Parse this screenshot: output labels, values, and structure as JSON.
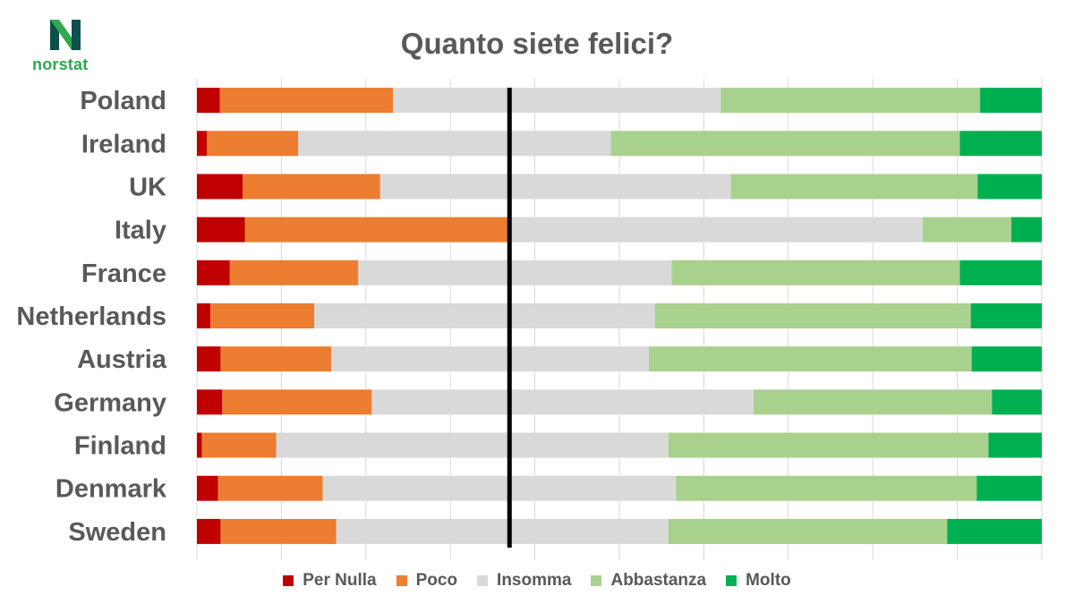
{
  "brand": {
    "name": "norstat",
    "color_dark": "#0d4f4a",
    "color_green": "#2fa84f"
  },
  "chart_data": {
    "type": "bar",
    "orientation": "horizontal",
    "stacked": true,
    "title": "Quanto siete felici?",
    "xlabel": "",
    "ylabel": "",
    "xlim": [
      0,
      1
    ],
    "reference_line_at": 0.37,
    "categories": [
      "Poland",
      "Ireland",
      "UK",
      "Italy",
      "France",
      "Netherlands",
      "Austria",
      "Germany",
      "Finland",
      "Denmark",
      "Sweden"
    ],
    "series": [
      {
        "name": "Per Nulla",
        "color": "#c00000",
        "values": [
          0.027,
          0.012,
          0.054,
          0.057,
          0.039,
          0.016,
          0.028,
          0.03,
          0.006,
          0.025,
          0.028
        ]
      },
      {
        "name": "Poco",
        "color": "#ed7d31",
        "values": [
          0.205,
          0.108,
          0.163,
          0.311,
          0.152,
          0.123,
          0.131,
          0.177,
          0.088,
          0.124,
          0.137
        ]
      },
      {
        "name": "Insomma",
        "color": "#d9d9d9",
        "values": [
          0.388,
          0.37,
          0.415,
          0.491,
          0.371,
          0.403,
          0.376,
          0.452,
          0.464,
          0.418,
          0.393
        ]
      },
      {
        "name": "Abbastanza",
        "color": "#a9d18e",
        "values": [
          0.307,
          0.413,
          0.292,
          0.105,
          0.341,
          0.374,
          0.382,
          0.282,
          0.379,
          0.356,
          0.33
        ]
      },
      {
        "name": "Molto",
        "color": "#00b050",
        "values": [
          0.073,
          0.097,
          0.076,
          0.036,
          0.097,
          0.084,
          0.083,
          0.059,
          0.063,
          0.077,
          0.112
        ]
      }
    ],
    "grid": true,
    "legend_position": "bottom"
  }
}
